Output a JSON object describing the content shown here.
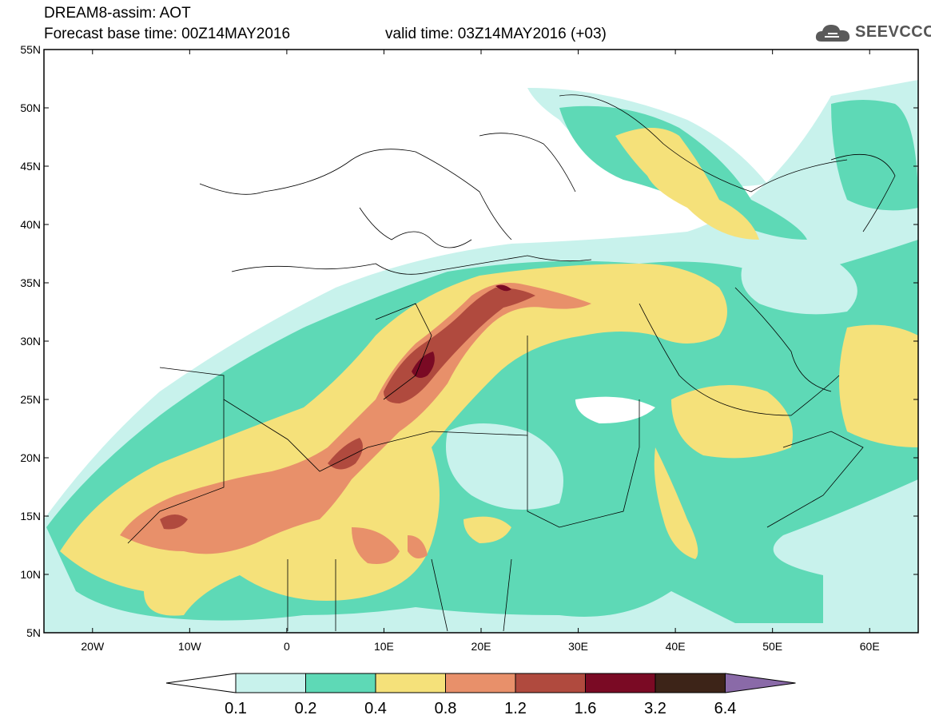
{
  "title": {
    "line1": "DREAM8-assim: AOT",
    "line2": "Forecast base time: 00Z14MAY2016",
    "valid": "valid time: 03Z14MAY2016 (+03)"
  },
  "logo": {
    "text": "SEEVCCC",
    "icon": "cloud-icon"
  },
  "map": {
    "lat_labels": [
      "55N",
      "50N",
      "45N",
      "40N",
      "35N",
      "30N",
      "25N",
      "20N",
      "15N",
      "10N",
      "5N"
    ],
    "lon_labels": [
      "20W",
      "10W",
      "0",
      "10E",
      "20E",
      "30E",
      "40E",
      "50E",
      "60E"
    ],
    "lat_range": [
      5,
      55
    ],
    "lon_range": [
      -25,
      65
    ]
  },
  "colorbar": {
    "labels": [
      "0.1",
      "0.2",
      "0.4",
      "0.8",
      "1.2",
      "1.6",
      "3.2",
      "6.4"
    ],
    "colors": [
      "#ffffff",
      "#c8f2ec",
      "#5ed9b6",
      "#f5e17a",
      "#e8906a",
      "#b04a3e",
      "#7a0a24",
      "#3d2418",
      "#8a6aa8"
    ]
  }
}
